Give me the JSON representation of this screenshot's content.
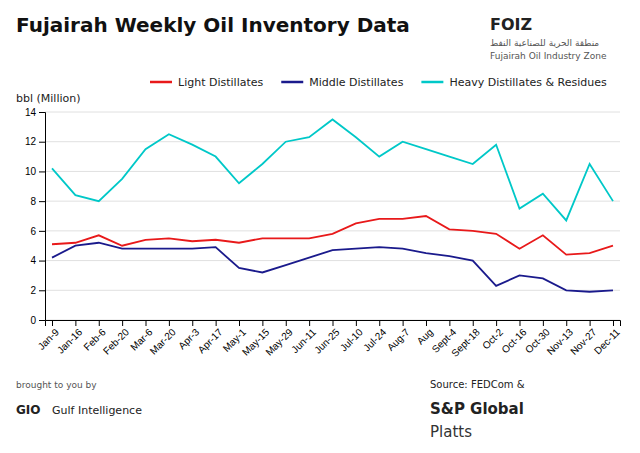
{
  "chart_data": {
    "type": "line",
    "title": "Fujairah Weekly Oil Inventory Data",
    "y_label": "bbl (Million)",
    "categories": [
      "Jan-9",
      "Jan-16",
      "Feb-6",
      "Feb-20",
      "Mar-6",
      "Mar-20",
      "Apr-3",
      "Apr-17",
      "May-1",
      "May-15",
      "May-29",
      "Jun-11",
      "Jun-25",
      "Jul-10",
      "Jul-24",
      "Aug-7",
      "Aug",
      "Sept-4",
      "Sept-18",
      "Oct-2",
      "Oct-16",
      "Oct-30",
      "Nov-13",
      "Nov-27",
      "Dec-11"
    ],
    "series": [
      {
        "name": "Light Distillates",
        "color": "#e8191a",
        "values": [
          5.1,
          5.2,
          5.7,
          5.0,
          5.4,
          5.5,
          5.3,
          5.4,
          5.2,
          5.5,
          5.5,
          5.5,
          5.8,
          6.5,
          6.8,
          6.8,
          7.0,
          6.1,
          6.0,
          5.8,
          4.8,
          5.7,
          4.4,
          4.5,
          5.0
        ]
      },
      {
        "name": "Middle Distillates",
        "color": "#1a1a8c",
        "values": [
          4.2,
          5.0,
          5.2,
          4.8,
          4.8,
          4.8,
          4.8,
          4.9,
          3.5,
          3.2,
          3.7,
          4.2,
          4.7,
          4.8,
          4.9,
          4.8,
          4.5,
          4.3,
          4.0,
          2.3,
          3.0,
          2.8,
          2.0,
          1.9,
          2.0
        ]
      },
      {
        "name": "Heavy Distillates & Residues",
        "color": "#00c8c8",
        "values": [
          10.2,
          8.4,
          8.0,
          9.5,
          11.5,
          12.5,
          11.8,
          11.0,
          9.2,
          10.5,
          12.0,
          12.3,
          13.5,
          12.3,
          11.0,
          12.0,
          11.5,
          11.0,
          10.5,
          11.8,
          7.5,
          8.5,
          6.7,
          10.5,
          8.0
        ]
      }
    ],
    "ylim": [
      0,
      14
    ],
    "yticks": [
      0,
      2,
      4,
      6,
      8,
      10,
      12,
      14
    ],
    "grid": true,
    "legend": "top",
    "annotations": [
      "FOIZ",
      "منطقة الحرية للصناعية النفط",
      "Fujairah Oil Industry Zone",
      "brought to you by",
      "GIO",
      "Gulf Intelligence",
      "Source: FEDCom &",
      "S&P Global",
      "Platts"
    ]
  }
}
